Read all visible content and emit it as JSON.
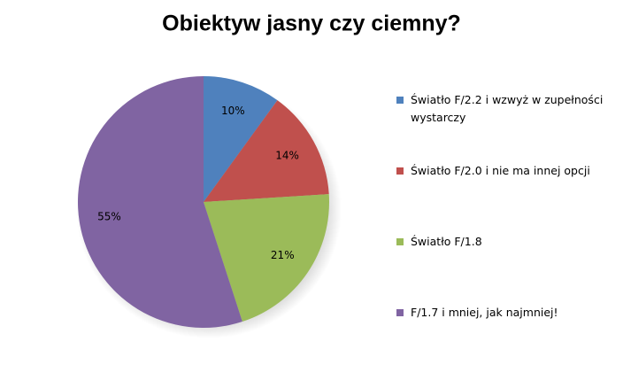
{
  "chart_data": {
    "type": "pie",
    "title": "Obiektyw jasny czy ciemny?",
    "categories": [
      "Światło F/2.2  i wzwyż  w zupełności wystarczy",
      "Światło F/2.0 i nie ma innej opcji",
      "Światło F/1.8",
      "F/1.7 i mniej, jak najmniej!"
    ],
    "values": [
      10,
      14,
      21,
      55
    ],
    "value_labels": [
      "10%",
      "14%",
      "21%",
      "55%"
    ],
    "colors": [
      "#4f81bd",
      "#c0504d",
      "#9bbb59",
      "#8064a2"
    ],
    "legend": "right"
  }
}
